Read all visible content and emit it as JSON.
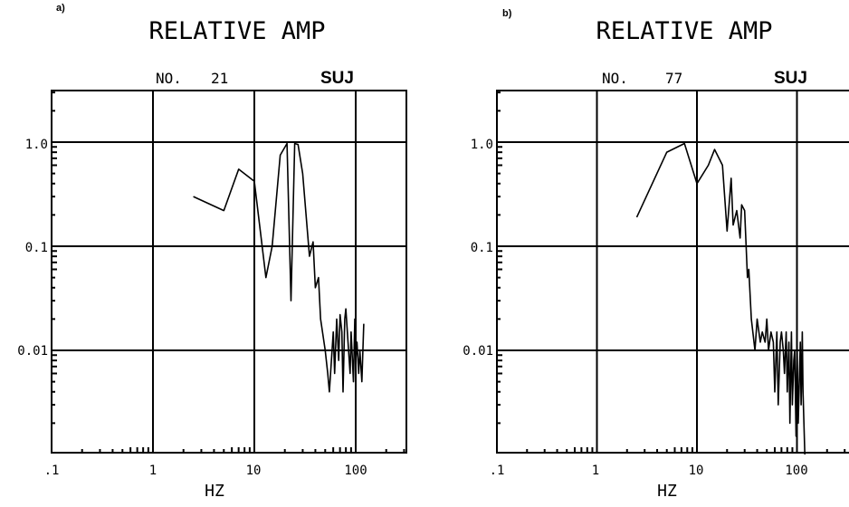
{
  "chart_data": [
    {
      "type": "line",
      "panel_label": "a)",
      "title": "RELATIVE AMP",
      "record_label": "NO.",
      "record_number": "21",
      "station": "SUJ",
      "xlabel": "HZ",
      "ylabel": "",
      "xscale": "log",
      "yscale": "log",
      "xlim": [
        0.1,
        400
      ],
      "ylim": [
        0.001,
        2
      ],
      "x_tick_labels": [
        ".1",
        "1",
        "10",
        "100"
      ],
      "y_tick_labels": [
        "1.0",
        "0.1",
        "0.01"
      ],
      "grid": true,
      "legend": "none",
      "line_color": "#000000",
      "series": [
        {
          "x": [
            2.5,
            5,
            7,
            10,
            13,
            15,
            18,
            21,
            23,
            25,
            27,
            30,
            35,
            38,
            40,
            43,
            45,
            50,
            53,
            55,
            60,
            62,
            65,
            68,
            70,
            73,
            75,
            78,
            80,
            85,
            88,
            90,
            95,
            98,
            100,
            103,
            107,
            110,
            115,
            120
          ],
          "y": [
            0.3,
            0.22,
            0.55,
            0.42,
            0.05,
            0.1,
            0.75,
            0.97,
            0.03,
            0.97,
            0.95,
            0.5,
            0.08,
            0.11,
            0.04,
            0.05,
            0.02,
            0.01,
            0.006,
            0.004,
            0.015,
            0.006,
            0.02,
            0.008,
            0.022,
            0.015,
            0.004,
            0.02,
            0.025,
            0.01,
            0.006,
            0.015,
            0.005,
            0.02,
            0.008,
            0.012,
            0.006,
            0.01,
            0.005,
            0.018
          ]
        }
      ]
    },
    {
      "type": "line",
      "panel_label": "b)",
      "title": "RELATIVE AMP",
      "record_label": "NO.",
      "record_number": "77",
      "station": "SUJ",
      "xlabel": "HZ",
      "ylabel": "",
      "xscale": "log",
      "yscale": "log",
      "xlim": [
        0.1,
        400
      ],
      "ylim": [
        0.001,
        2
      ],
      "x_tick_labels": [
        ".1",
        "1",
        "10",
        "100"
      ],
      "y_tick_labels": [
        "1.0",
        "0.1",
        "0.01"
      ],
      "grid": true,
      "legend": "none",
      "line_color": "#000000",
      "series": [
        {
          "x": [
            2.5,
            5,
            7.5,
            10,
            13,
            15,
            18,
            20,
            22,
            23,
            25,
            27,
            28,
            30,
            32,
            33,
            35,
            38,
            40,
            43,
            45,
            48,
            50,
            52,
            55,
            58,
            60,
            63,
            65,
            68,
            70,
            73,
            75,
            78,
            80,
            83,
            85,
            88,
            90,
            93,
            95,
            98,
            100,
            103,
            105,
            108,
            110,
            113,
            115,
            120
          ],
          "y": [
            0.19,
            0.8,
            0.97,
            0.4,
            0.6,
            0.85,
            0.6,
            0.14,
            0.45,
            0.16,
            0.22,
            0.12,
            0.25,
            0.22,
            0.05,
            0.06,
            0.02,
            0.01,
            0.02,
            0.012,
            0.015,
            0.012,
            0.02,
            0.01,
            0.015,
            0.012,
            0.004,
            0.015,
            0.003,
            0.012,
            0.015,
            0.01,
            0.006,
            0.015,
            0.004,
            0.012,
            0.002,
            0.015,
            0.003,
            0.008,
            0.01,
            0.0015,
            0.015,
            0.002,
            0.004,
            0.012,
            0.003,
            0.015,
            0.004,
            0.001
          ]
        }
      ]
    }
  ]
}
